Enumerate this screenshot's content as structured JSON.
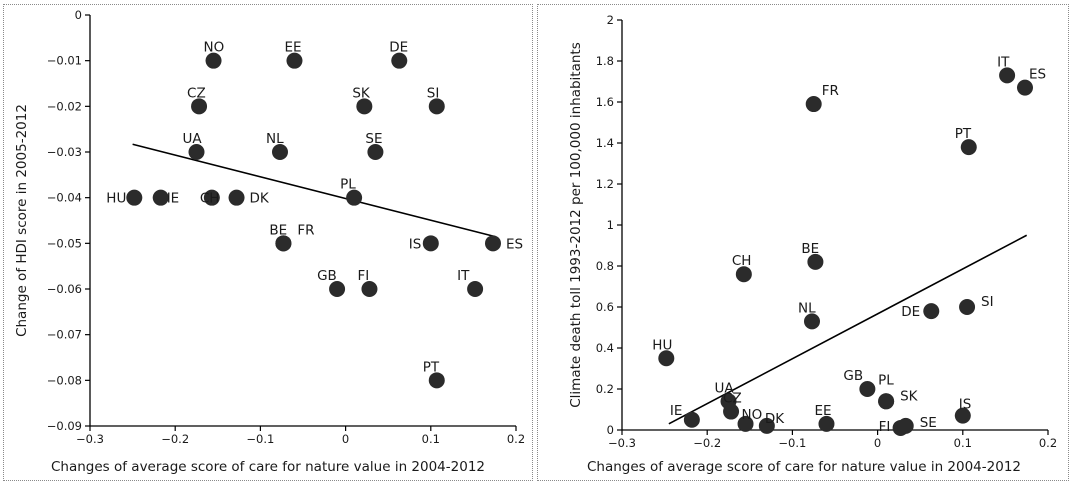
{
  "chart_data": [
    {
      "type": "scatter",
      "title": "",
      "xlabel": "Changes of average score of care for nature value in 2004-2012",
      "ylabel": "Change of HDI score in 2005-2012",
      "xlim": [
        -0.3,
        0.2
      ],
      "ylim": [
        -0.09,
        0
      ],
      "x_ticks": [
        -0.3,
        -0.2,
        -0.1,
        0,
        0.1,
        0.2
      ],
      "x_tick_labels": [
        "−0.3",
        "−0.2",
        "−0.1",
        "0",
        "0.1",
        "0.2"
      ],
      "y_ticks": [
        0,
        -0.01,
        -0.02,
        -0.03,
        -0.04,
        -0.05,
        -0.06,
        -0.07,
        -0.08,
        -0.09
      ],
      "y_tick_labels": [
        "0",
        "−0.01",
        "−0.02",
        "−0.03",
        "−0.04",
        "−0.05",
        "−0.06",
        "−0.07",
        "−0.08",
        "−0.09"
      ],
      "grid": false,
      "trendline": {
        "x": [
          -0.25,
          0.175
        ],
        "y": [
          -0.0283,
          -0.0485
        ]
      },
      "points": [
        {
          "label": "NO",
          "x": -0.155,
          "y": -0.01
        },
        {
          "label": "EE",
          "x": -0.06,
          "y": -0.01
        },
        {
          "label": "DE",
          "x": 0.063,
          "y": -0.01
        },
        {
          "label": "CZ",
          "x": -0.172,
          "y": -0.02
        },
        {
          "label": "SK",
          "x": 0.022,
          "y": -0.02
        },
        {
          "label": "SI",
          "x": 0.107,
          "y": -0.02
        },
        {
          "label": "UA",
          "x": -0.175,
          "y": -0.03
        },
        {
          "label": "NL",
          "x": -0.077,
          "y": -0.03
        },
        {
          "label": "SE",
          "x": 0.035,
          "y": -0.03
        },
        {
          "label": "HU",
          "x": -0.248,
          "y": -0.04
        },
        {
          "label": "IE",
          "x": -0.217,
          "y": -0.04
        },
        {
          "label": "CH",
          "x": -0.157,
          "y": -0.04
        },
        {
          "label": "DK",
          "x": -0.128,
          "y": -0.04
        },
        {
          "label": "PL",
          "x": 0.01,
          "y": -0.04
        },
        {
          "label": "BE",
          "x": -0.073,
          "y": -0.05
        },
        {
          "label": "FR",
          "x": -0.073,
          "y": -0.05
        },
        {
          "label": "IS",
          "x": 0.1,
          "y": -0.05
        },
        {
          "label": "ES",
          "x": 0.173,
          "y": -0.05
        },
        {
          "label": "GB",
          "x": -0.01,
          "y": -0.06
        },
        {
          "label": "FI",
          "x": 0.028,
          "y": -0.06
        },
        {
          "label": "IT",
          "x": 0.152,
          "y": -0.06
        },
        {
          "label": "PT",
          "x": 0.107,
          "y": -0.08
        }
      ]
    },
    {
      "type": "scatter",
      "title": "",
      "xlabel": "Changes of average score of care for nature value in 2004-2012",
      "ylabel": "Climate death toll 1993-2012 per 100,000 inhabitants",
      "xlim": [
        -0.3,
        0.2
      ],
      "ylim": [
        0,
        2
      ],
      "x_ticks": [
        -0.3,
        -0.2,
        -0.1,
        0,
        0.1,
        0.2
      ],
      "x_tick_labels": [
        "−0.3",
        "−0.2",
        "−0.1",
        "0",
        "0.1",
        "0.2"
      ],
      "y_ticks": [
        0,
        0.2,
        0.4,
        0.6,
        0.8,
        1,
        1.2,
        1.4,
        1.6,
        1.8,
        2
      ],
      "y_tick_labels": [
        "0",
        "0.2",
        "0.4",
        "0.6",
        "0.8",
        "1",
        "1.2",
        "1.4",
        "1.6",
        "1.8",
        "2"
      ],
      "grid": false,
      "trendline": {
        "x": [
          -0.245,
          0.175
        ],
        "y": [
          0.03,
          0.95
        ]
      },
      "points": [
        {
          "label": "FR",
          "x": -0.075,
          "y": 1.59
        },
        {
          "label": "IT",
          "x": 0.152,
          "y": 1.73
        },
        {
          "label": "ES",
          "x": 0.173,
          "y": 1.67
        },
        {
          "label": "PT",
          "x": 0.107,
          "y": 1.38
        },
        {
          "label": "CH",
          "x": -0.157,
          "y": 0.76
        },
        {
          "label": "BE",
          "x": -0.073,
          "y": 0.82
        },
        {
          "label": "NL",
          "x": -0.077,
          "y": 0.53
        },
        {
          "label": "DE",
          "x": 0.063,
          "y": 0.58
        },
        {
          "label": "SI",
          "x": 0.105,
          "y": 0.6
        },
        {
          "label": "HU",
          "x": -0.248,
          "y": 0.35
        },
        {
          "label": "UA",
          "x": -0.175,
          "y": 0.14
        },
        {
          "label": "CZ",
          "x": -0.172,
          "y": 0.09
        },
        {
          "label": "IE",
          "x": -0.218,
          "y": 0.05
        },
        {
          "label": "NO",
          "x": -0.155,
          "y": 0.03
        },
        {
          "label": "DK",
          "x": -0.13,
          "y": 0.02
        },
        {
          "label": "EE",
          "x": -0.06,
          "y": 0.03
        },
        {
          "label": "GB",
          "x": -0.012,
          "y": 0.2
        },
        {
          "label": "PL",
          "x": 0.01,
          "y": 0.14
        },
        {
          "label": "SK",
          "x": 0.01,
          "y": 0.14
        },
        {
          "label": "FI",
          "x": 0.027,
          "y": 0.01
        },
        {
          "label": "SE",
          "x": 0.033,
          "y": 0.02
        },
        {
          "label": "IS",
          "x": 0.1,
          "y": 0.07
        }
      ]
    }
  ],
  "style": {
    "marker_color": "#2b2b2b",
    "line_color": "#000000",
    "axis_color": "#000000",
    "border_color": "#8a8a8a"
  }
}
